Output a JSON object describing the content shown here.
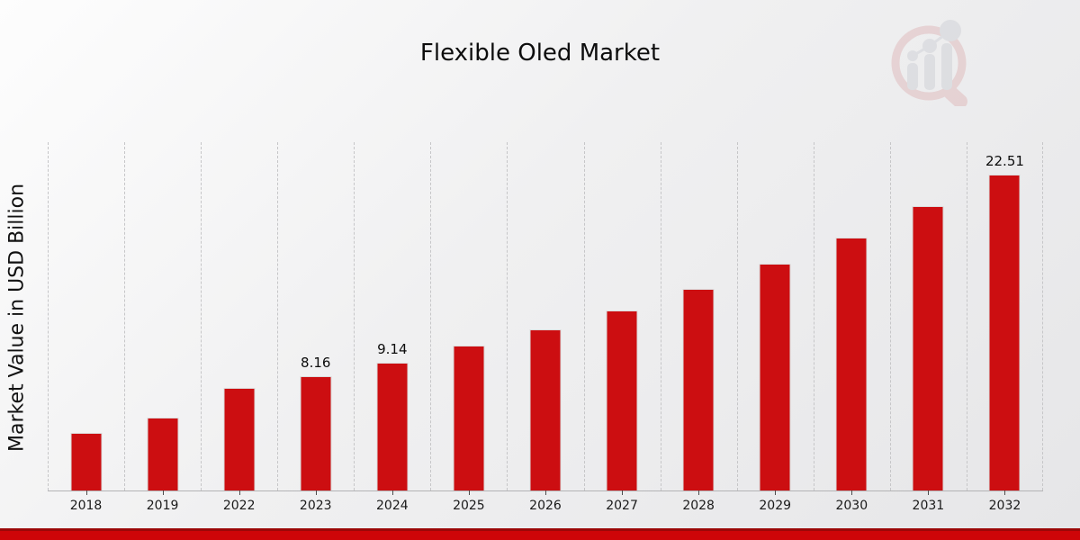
{
  "page": {
    "title": "Flexible Oled Market"
  },
  "chart_data": {
    "type": "bar",
    "title": "Flexible Oled Market",
    "xlabel": "",
    "ylabel": "Market Value in USD Billion",
    "categories": [
      "2018",
      "2019",
      "2022",
      "2023",
      "2024",
      "2025",
      "2026",
      "2027",
      "2028",
      "2029",
      "2030",
      "2031",
      "2032"
    ],
    "values": [
      4.1,
      5.2,
      7.3,
      8.16,
      9.14,
      10.3,
      11.5,
      12.85,
      14.4,
      16.15,
      18.05,
      20.3,
      22.51
    ],
    "point_labels": [
      null,
      null,
      null,
      "8.16",
      "9.14",
      null,
      null,
      null,
      null,
      null,
      null,
      null,
      "22.51"
    ],
    "ylim": [
      0,
      24.83
    ],
    "grid": "vertical-dashed",
    "legend": "none",
    "bar_color": "#cc0e11"
  },
  "colors": {
    "bar": "#cc0e11",
    "bar_edge": "#dcdcdc",
    "gridline": "#c6c6c8",
    "axis_line": "#b3b3b5",
    "tick": "#4d4d4d",
    "text": "#111111",
    "bottom_band": "#ce0508",
    "bottom_band_top": "#9b0808",
    "watermark_red": "#c24b4b",
    "watermark_gray": "#8d93a0"
  },
  "watermark": {
    "icon": "magnifier-bar-chart-logo"
  }
}
